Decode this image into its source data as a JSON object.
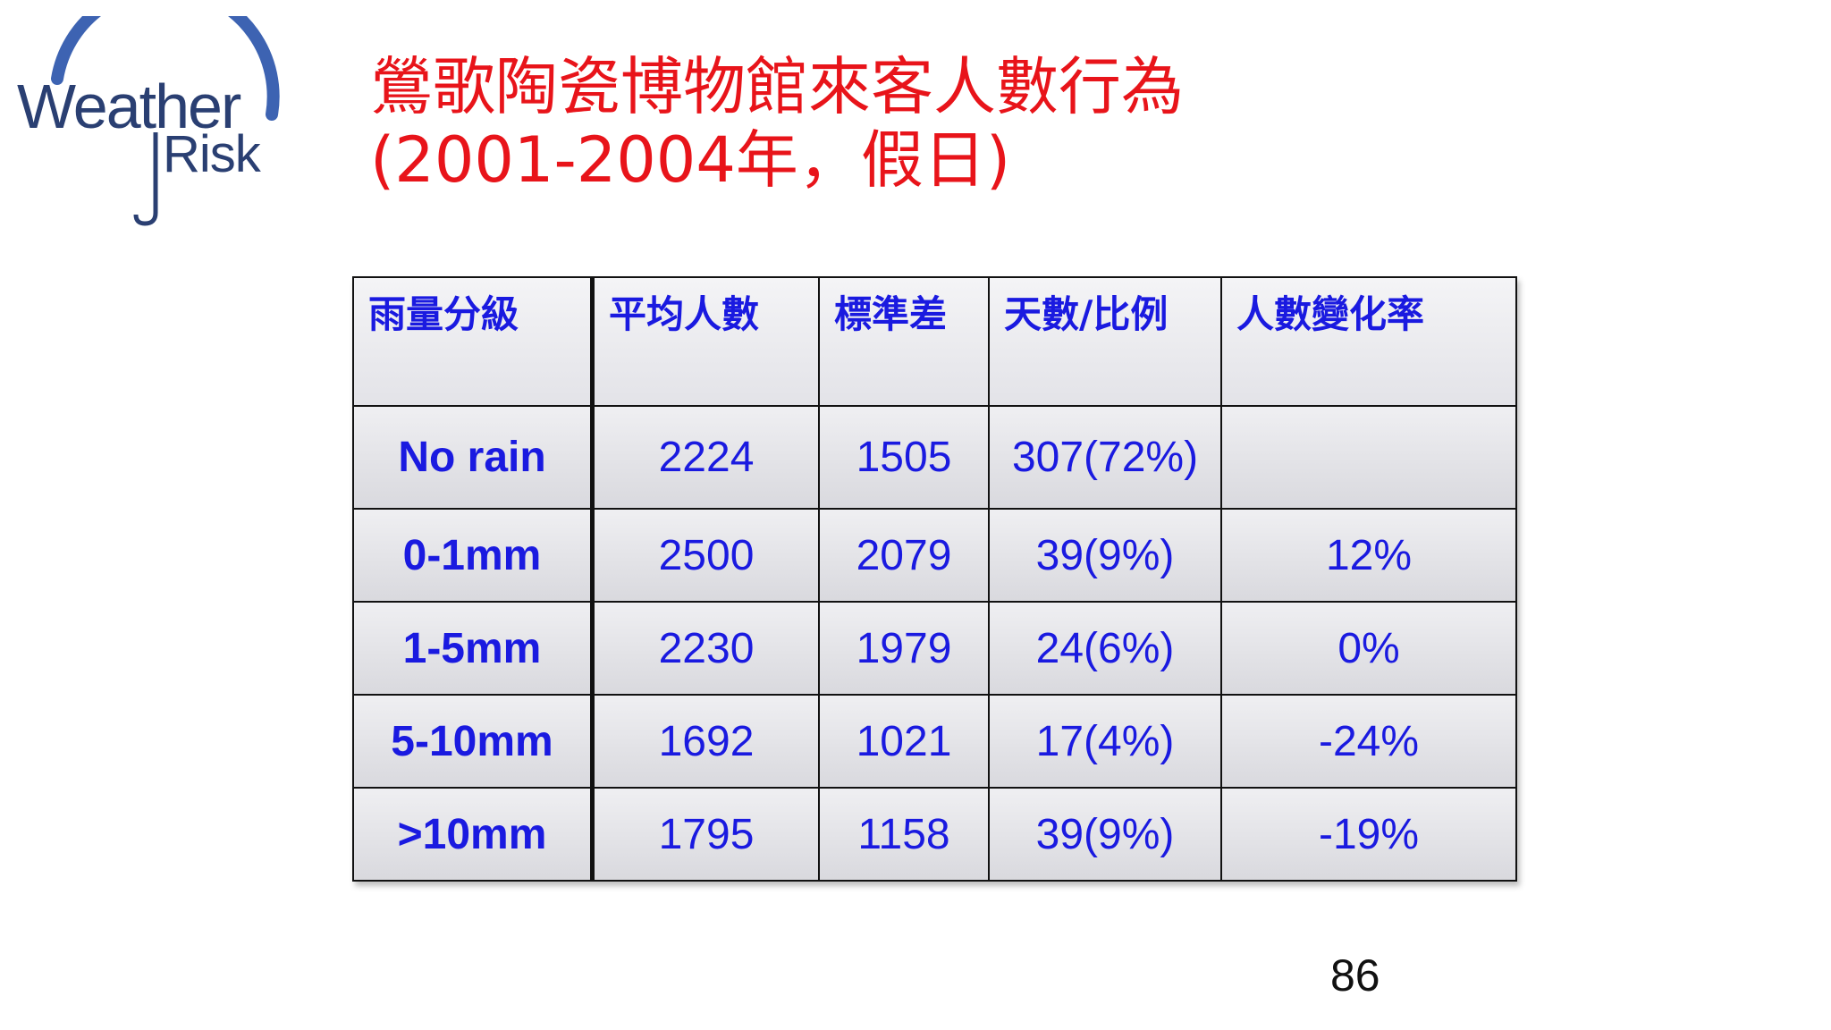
{
  "logo": {
    "word1": "Weather",
    "word2": "Risk",
    "colors": {
      "text": "#2a3f72",
      "arc": "#3d63b2"
    }
  },
  "title": {
    "line1": "鶯歌陶瓷博物館來客人數行為",
    "line2": "(2001-2004年，假日)",
    "color": "#e8141a"
  },
  "table": {
    "headers": [
      "雨量分級",
      "平均人數",
      "標準差",
      "天數/比例",
      "人數變化率"
    ],
    "rows": [
      {
        "label": "No rain",
        "mean": "2224",
        "std": "1505",
        "days": "307(72%)",
        "change": ""
      },
      {
        "label": "0-1mm",
        "mean": "2500",
        "std": "2079",
        "days": "39(9%)",
        "change": "12%"
      },
      {
        "label": "1-5mm",
        "mean": "2230",
        "std": "1979",
        "days": "24(6%)",
        "change": "0%"
      },
      {
        "label": "5-10mm",
        "mean": "1692",
        "std": "1021",
        "days": "17(4%)",
        "change": "-24%"
      },
      {
        "label": ">10mm",
        "mean": "1795",
        "std": "1158",
        "days": "39(9%)",
        "change": "-19%"
      }
    ],
    "text_color": "#1a1ae0"
  },
  "page_number": "86"
}
